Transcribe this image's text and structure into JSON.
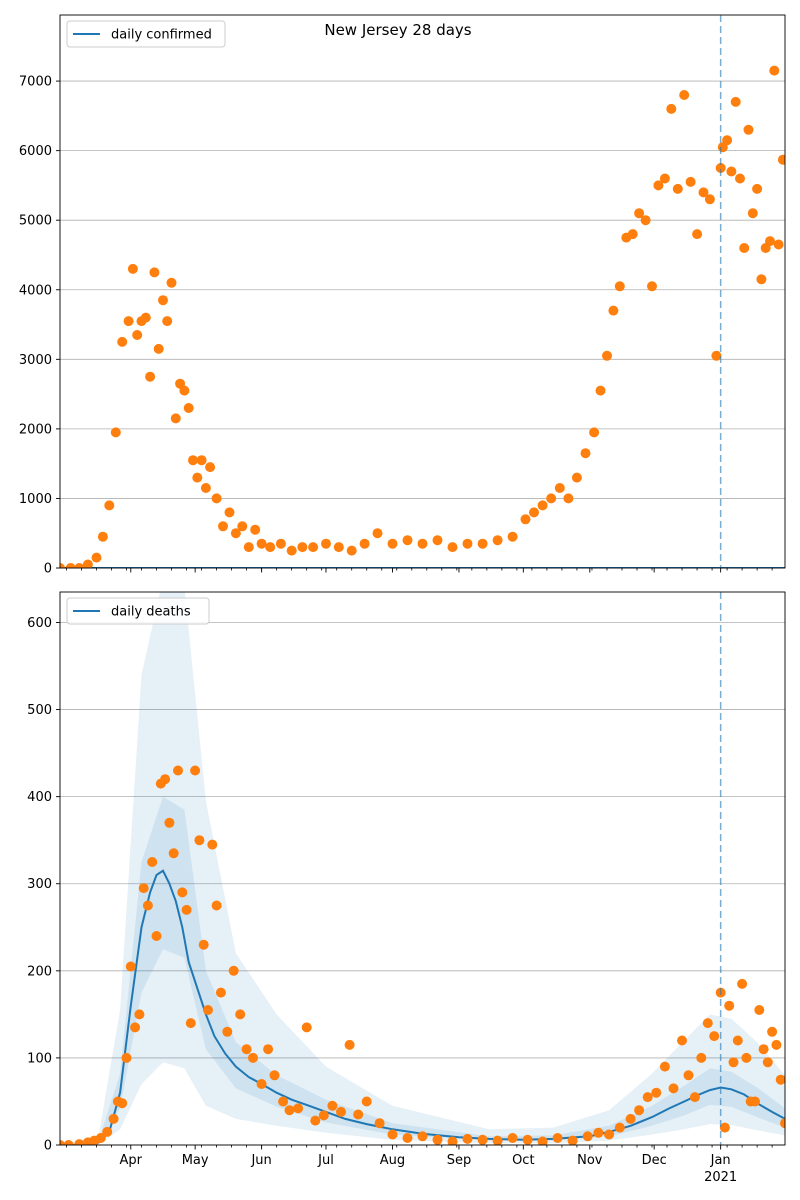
{
  "chart_data": [
    {
      "type": "scatter",
      "title": "New Jersey 28 days",
      "legend": {
        "entries": [
          "daily confirmed"
        ],
        "placement": "top-left"
      },
      "series": [
        {
          "name": "daily confirmed",
          "kind": "line",
          "color": "#1f77b4",
          "x": [
            "2020-02-28",
            "2021-01-31"
          ],
          "values": [
            0,
            0
          ]
        },
        {
          "kind": "scatter",
          "color": "#ff7f0e",
          "x": [
            "2020-02-28",
            "2020-03-04",
            "2020-03-08",
            "2020-03-12",
            "2020-03-16",
            "2020-03-19",
            "2020-03-22",
            "2020-03-25",
            "2020-03-28",
            "2020-03-31",
            "2020-04-02",
            "2020-04-04",
            "2020-04-06",
            "2020-04-08",
            "2020-04-10",
            "2020-04-12",
            "2020-04-14",
            "2020-04-16",
            "2020-04-18",
            "2020-04-20",
            "2020-04-22",
            "2020-04-24",
            "2020-04-26",
            "2020-04-28",
            "2020-04-30",
            "2020-05-02",
            "2020-05-04",
            "2020-05-06",
            "2020-05-08",
            "2020-05-11",
            "2020-05-14",
            "2020-05-17",
            "2020-05-20",
            "2020-05-23",
            "2020-05-26",
            "2020-05-29",
            "2020-06-01",
            "2020-06-05",
            "2020-06-10",
            "2020-06-15",
            "2020-06-20",
            "2020-06-25",
            "2020-07-01",
            "2020-07-07",
            "2020-07-13",
            "2020-07-19",
            "2020-07-25",
            "2020-08-01",
            "2020-08-08",
            "2020-08-15",
            "2020-08-22",
            "2020-08-29",
            "2020-09-05",
            "2020-09-12",
            "2020-09-19",
            "2020-09-26",
            "2020-10-02",
            "2020-10-06",
            "2020-10-10",
            "2020-10-14",
            "2020-10-18",
            "2020-10-22",
            "2020-10-26",
            "2020-10-30",
            "2020-11-03",
            "2020-11-06",
            "2020-11-09",
            "2020-11-12",
            "2020-11-15",
            "2020-11-18",
            "2020-11-21",
            "2020-11-24",
            "2020-11-27",
            "2020-11-30",
            "2020-12-03",
            "2020-12-06",
            "2020-12-09",
            "2020-12-12",
            "2020-12-15",
            "2020-12-18",
            "2020-12-21",
            "2020-12-24",
            "2020-12-27",
            "2020-12-30",
            "2021-01-01",
            "2021-01-02",
            "2021-01-04",
            "2021-01-06",
            "2021-01-08",
            "2021-01-10",
            "2021-01-12",
            "2021-01-14",
            "2021-01-16",
            "2021-01-18",
            "2021-01-20",
            "2021-01-22",
            "2021-01-24",
            "2021-01-26",
            "2021-01-28",
            "2021-01-30"
          ],
          "values": [
            0,
            0,
            0,
            50,
            150,
            450,
            900,
            1950,
            3250,
            3550,
            4300,
            3350,
            3550,
            3600,
            2750,
            4250,
            3150,
            3850,
            3550,
            4100,
            2150,
            2650,
            2550,
            2300,
            1550,
            1300,
            1550,
            1150,
            1450,
            1000,
            600,
            800,
            500,
            600,
            300,
            550,
            350,
            300,
            350,
            250,
            300,
            300,
            350,
            300,
            250,
            350,
            500,
            350,
            400,
            350,
            400,
            300,
            350,
            350,
            400,
            450,
            700,
            800,
            900,
            1000,
            1150,
            1000,
            1300,
            1650,
            1950,
            2550,
            3050,
            3700,
            4050,
            4750,
            4800,
            5100,
            5000,
            4050,
            5500,
            5600,
            6600,
            5450,
            6800,
            5550,
            4800,
            5400,
            5300,
            3050,
            5750,
            6050,
            6150,
            5700,
            6700,
            5600,
            4600,
            6300,
            5100,
            5450,
            4150,
            4600,
            4700,
            7150,
            4650,
            5870
          ]
        },
        {
          "kind": "marker",
          "color": "#1f77b4",
          "x": [
            "2021-01-01"
          ]
        }
      ],
      "ylim": [
        0,
        7950
      ],
      "yticks": [
        0,
        1000,
        2000,
        3000,
        4000,
        5000,
        6000,
        7000
      ],
      "xlim": [
        "2020-02-28",
        "2021-01-31"
      ],
      "grid": "horizontal"
    },
    {
      "type": "scatter",
      "legend": {
        "entries": [
          "daily deaths"
        ],
        "placement": "top-left"
      },
      "series": [
        {
          "name": "daily deaths",
          "kind": "line",
          "color": "#1f77b4",
          "x": [
            "2020-02-28",
            "2020-03-10",
            "2020-03-17",
            "2020-03-22",
            "2020-03-27",
            "2020-04-01",
            "2020-04-06",
            "2020-04-10",
            "2020-04-13",
            "2020-04-16",
            "2020-04-19",
            "2020-04-22",
            "2020-04-25",
            "2020-04-28",
            "2020-05-02",
            "2020-05-06",
            "2020-05-10",
            "2020-05-15",
            "2020-05-20",
            "2020-05-26",
            "2020-06-01",
            "2020-06-08",
            "2020-06-15",
            "2020-06-22",
            "2020-07-01",
            "2020-07-10",
            "2020-07-20",
            "2020-08-01",
            "2020-08-15",
            "2020-09-01",
            "2020-09-15",
            "2020-10-01",
            "2020-10-15",
            "2020-11-01",
            "2020-11-10",
            "2020-11-20",
            "2020-11-30",
            "2020-12-08",
            "2020-12-15",
            "2020-12-22",
            "2020-12-27",
            "2021-01-01",
            "2021-01-06",
            "2021-01-12",
            "2021-01-18",
            "2021-01-25",
            "2021-01-31"
          ],
          "values": [
            0,
            0,
            3,
            15,
            60,
            160,
            250,
            290,
            310,
            315,
            300,
            280,
            250,
            210,
            180,
            150,
            125,
            105,
            90,
            78,
            70,
            60,
            52,
            46,
            38,
            30,
            24,
            18,
            13,
            9,
            7,
            6,
            7,
            10,
            15,
            22,
            32,
            42,
            50,
            58,
            63,
            66,
            64,
            58,
            48,
            38,
            30
          ]
        },
        {
          "kind": "band",
          "label": "inner",
          "color": "#1f77b4",
          "opacity": 0.11,
          "x": [
            "2020-02-28",
            "2020-03-17",
            "2020-03-27",
            "2020-04-06",
            "2020-04-16",
            "2020-04-26",
            "2020-05-06",
            "2020-05-20",
            "2020-06-08",
            "2020-07-01",
            "2020-08-01",
            "2020-09-15",
            "2020-10-15",
            "2020-11-10",
            "2020-11-30",
            "2020-12-15",
            "2020-12-27",
            "2021-01-06",
            "2021-01-18",
            "2021-01-31"
          ],
          "lower": [
            0,
            1,
            42,
            175,
            225,
            215,
            110,
            65,
            44,
            26,
            12,
            5,
            5,
            10,
            22,
            34,
            46,
            44,
            32,
            20
          ],
          "upper": [
            0,
            5,
            82,
            325,
            400,
            385,
            200,
            118,
            80,
            52,
            25,
            10,
            11,
            22,
            45,
            68,
            88,
            84,
            66,
            42
          ]
        },
        {
          "kind": "band",
          "label": "outer",
          "color": "#1f77b4",
          "opacity": 0.11,
          "x": [
            "2020-02-28",
            "2020-03-17",
            "2020-03-27",
            "2020-04-06",
            "2020-04-16",
            "2020-04-26",
            "2020-05-06",
            "2020-05-20",
            "2020-06-08",
            "2020-07-01",
            "2020-08-01",
            "2020-09-15",
            "2020-10-15",
            "2020-11-10",
            "2020-11-30",
            "2020-12-15",
            "2020-12-27",
            "2021-01-06",
            "2021-01-18",
            "2021-01-31"
          ],
          "lower": [
            0,
            0,
            18,
            70,
            95,
            88,
            45,
            30,
            22,
            14,
            6,
            2,
            2,
            5,
            12,
            18,
            24,
            23,
            17,
            11
          ],
          "upper": [
            0,
            10,
            155,
            540,
            650,
            640,
            395,
            220,
            150,
            90,
            45,
            18,
            20,
            40,
            82,
            120,
            150,
            145,
            118,
            80
          ]
        },
        {
          "kind": "scatter",
          "color": "#ff7f0e",
          "x": [
            "2020-02-28",
            "2020-03-03",
            "2020-03-08",
            "2020-03-12",
            "2020-03-15",
            "2020-03-18",
            "2020-03-21",
            "2020-03-24",
            "2020-03-26",
            "2020-03-28",
            "2020-03-30",
            "2020-04-01",
            "2020-04-03",
            "2020-04-05",
            "2020-04-07",
            "2020-04-09",
            "2020-04-11",
            "2020-04-13",
            "2020-04-15",
            "2020-04-17",
            "2020-04-19",
            "2020-04-21",
            "2020-04-23",
            "2020-04-25",
            "2020-04-27",
            "2020-04-29",
            "2020-05-01",
            "2020-05-03",
            "2020-05-05",
            "2020-05-07",
            "2020-05-09",
            "2020-05-11",
            "2020-05-13",
            "2020-05-16",
            "2020-05-19",
            "2020-05-22",
            "2020-05-25",
            "2020-05-28",
            "2020-06-01",
            "2020-06-04",
            "2020-06-07",
            "2020-06-11",
            "2020-06-14",
            "2020-06-18",
            "2020-06-22",
            "2020-06-26",
            "2020-06-30",
            "2020-07-04",
            "2020-07-08",
            "2020-07-12",
            "2020-07-16",
            "2020-07-20",
            "2020-07-26",
            "2020-08-01",
            "2020-08-08",
            "2020-08-15",
            "2020-08-22",
            "2020-08-29",
            "2020-09-05",
            "2020-09-12",
            "2020-09-19",
            "2020-09-26",
            "2020-10-03",
            "2020-10-10",
            "2020-10-17",
            "2020-10-24",
            "2020-10-31",
            "2020-11-05",
            "2020-11-10",
            "2020-11-15",
            "2020-11-20",
            "2020-11-24",
            "2020-11-28",
            "2020-12-02",
            "2020-12-06",
            "2020-12-10",
            "2020-12-14",
            "2020-12-17",
            "2020-12-20",
            "2020-12-23",
            "2020-12-26",
            "2020-12-29",
            "2021-01-01",
            "2021-01-03",
            "2021-01-05",
            "2021-01-07",
            "2021-01-09",
            "2021-01-11",
            "2021-01-13",
            "2021-01-15",
            "2021-01-17",
            "2021-01-19",
            "2021-01-21",
            "2021-01-23",
            "2021-01-25",
            "2021-01-27",
            "2021-01-29",
            "2021-01-31"
          ],
          "values": [
            0,
            0,
            1,
            3,
            5,
            8,
            15,
            30,
            50,
            48,
            100,
            205,
            135,
            150,
            295,
            275,
            325,
            240,
            415,
            420,
            370,
            335,
            430,
            290,
            270,
            140,
            430,
            350,
            230,
            155,
            345,
            275,
            175,
            130,
            200,
            150,
            110,
            100,
            70,
            110,
            80,
            50,
            40,
            42,
            135,
            28,
            34,
            45,
            38,
            115,
            35,
            50,
            25,
            12,
            8,
            10,
            6,
            4,
            7,
            6,
            5,
            8,
            6,
            4,
            8,
            5,
            10,
            14,
            12,
            20,
            30,
            40,
            55,
            60,
            90,
            65,
            120,
            80,
            55,
            100,
            140,
            125,
            175,
            20,
            160,
            95,
            120,
            185,
            100,
            50,
            50,
            155,
            110,
            95,
            130,
            115,
            75,
            25
          ]
        },
        {
          "kind": "marker",
          "color": "#1f77b4",
          "x": [
            "2021-01-01"
          ]
        }
      ],
      "ylim": [
        0,
        635
      ],
      "yticks": [
        0,
        100,
        200,
        300,
        400,
        500,
        600
      ],
      "xlim": [
        "2020-02-28",
        "2021-01-31"
      ],
      "xticks": [
        "Apr",
        "May",
        "Jun",
        "Jul",
        "Aug",
        "Sep",
        "Oct",
        "Nov",
        "Dec",
        "Jan"
      ],
      "xtick_dates": [
        "2020-04-01",
        "2020-05-01",
        "2020-06-01",
        "2020-07-01",
        "2020-08-01",
        "2020-09-01",
        "2020-10-01",
        "2020-11-01",
        "2020-12-01",
        "2021-01-01"
      ],
      "xtick_year": "2021",
      "grid": "horizontal"
    }
  ]
}
